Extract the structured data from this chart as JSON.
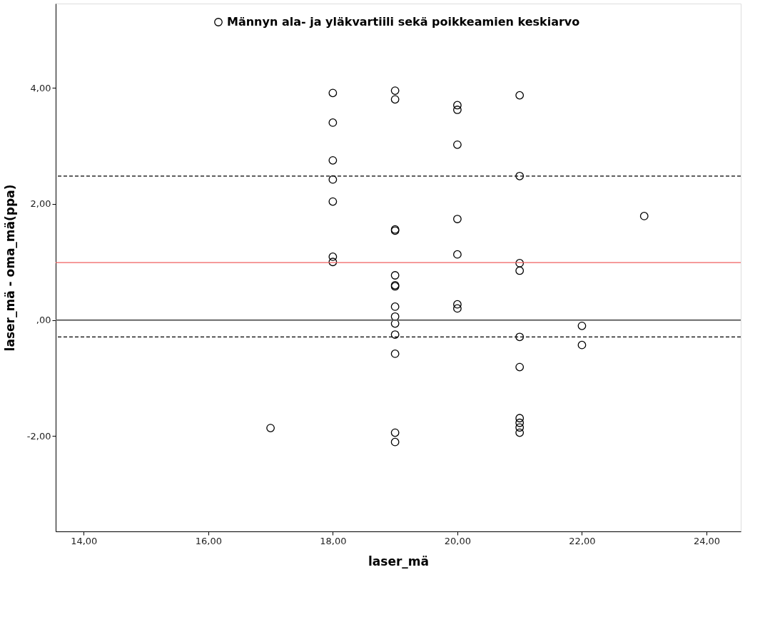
{
  "chart_data": {
    "type": "scatter",
    "xlabel": "laser_mä",
    "ylabel": "laser_mä - oma_mä(ppa)",
    "series": [
      {
        "name": "Männyn ala- ja yläkvartiili sekä poikkeamien keskiarvo",
        "color": "#000000",
        "x": [
          17,
          18,
          18,
          18,
          18,
          18,
          18,
          18,
          19,
          19,
          19,
          19,
          19,
          19,
          19,
          19,
          19,
          19,
          19,
          19,
          19,
          19,
          20,
          20,
          20,
          20,
          20,
          20,
          20,
          21,
          21,
          21,
          21,
          21,
          21,
          21,
          21,
          21,
          21,
          22,
          22,
          23
        ],
        "values": [
          -1.86,
          3.91,
          3.4,
          2.75,
          2.42,
          2.04,
          1.09,
          1.0,
          3.95,
          3.8,
          1.56,
          1.54,
          0.77,
          0.6,
          0.58,
          0.23,
          0.06,
          -0.06,
          -0.25,
          -0.58,
          -1.94,
          -2.1,
          3.7,
          3.62,
          3.02,
          1.74,
          1.13,
          0.27,
          0.2,
          3.87,
          2.48,
          0.98,
          0.85,
          -0.29,
          -0.81,
          -1.69,
          -1.77,
          -1.85,
          -1.94,
          -0.1,
          -0.43,
          1.79
        ]
      }
    ],
    "marker": "circle",
    "xlim": [
      13.55,
      24.55
    ],
    "ylim": [
      -3.64,
      5.45
    ],
    "xticks": [
      {
        "value": 14,
        "label": "14,00"
      },
      {
        "value": 16,
        "label": "16,00"
      },
      {
        "value": 18,
        "label": "18,00"
      },
      {
        "value": 20,
        "label": "20,00"
      },
      {
        "value": 22,
        "label": "22,00"
      },
      {
        "value": 24,
        "label": "24,00"
      }
    ],
    "yticks": [
      {
        "value": -2,
        "label": "-2,00"
      },
      {
        "value": 0,
        "label": ",00"
      },
      {
        "value": 2,
        "label": "2,00"
      },
      {
        "value": 4,
        "label": "4,00"
      }
    ],
    "ref_lines": [
      {
        "axis": "y",
        "value": 0,
        "color": "#666666",
        "line_style": "solid"
      },
      {
        "axis": "y",
        "value": 0.99,
        "color": "#f06060",
        "line_style": "solid"
      },
      {
        "axis": "y",
        "value": 2.48,
        "color": "#000000",
        "line_style": "dashed"
      },
      {
        "axis": "y",
        "value": -0.29,
        "color": "#000000",
        "line_style": "dashed"
      }
    ],
    "grid": false,
    "legend": "top"
  }
}
